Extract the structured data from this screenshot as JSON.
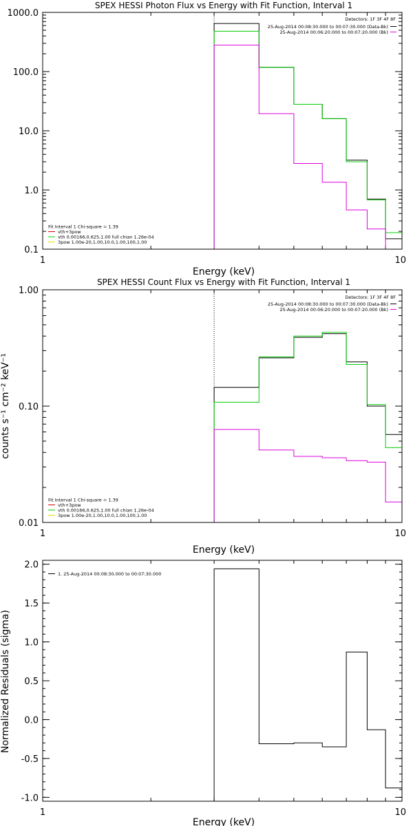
{
  "chart_data": [
    {
      "type": "line",
      "title": "SPEX HESSI Photon Flux vs Energy with Fit Function, Interval 1",
      "xlabel": "Energy (keV)",
      "ylabel": "",
      "xscale": "log",
      "yscale": "log",
      "xlim": [
        1,
        10
      ],
      "ylim": [
        0.1,
        1000
      ],
      "x_ticks": [
        "1",
        "10"
      ],
      "y_ticks": [
        "0.1",
        "1.0",
        "10.0",
        "100.0",
        "1000.0"
      ],
      "dotted_x": 3,
      "legend_right": {
        "detectors": "Detectors: 1F 3F 4F 8F",
        "entries": [
          {
            "text": "25-Aug-2014 00:08:30.000 to 00:07:30.000 (Data-Bk)",
            "color": "#000000"
          },
          {
            "text": "25-Aug-2014 00:06:20.000 to 00:07:20.000 (Bk)",
            "color": "#dd00dd"
          }
        ]
      },
      "legend_left": {
        "header": "Fit Interval 1    Chi-square = 1.39",
        "entries": [
          {
            "text": "vth+3pow",
            "color": "#dd0000"
          },
          {
            "text": "vth 0.00166,0.625,1.00  full chian 1.26e-04",
            "color": "#00cc00"
          },
          {
            "text": "3pow 1.00e-20,1.00,10.0,1.00,100,1.00",
            "color": "#dddd00"
          }
        ]
      },
      "edges": [
        3,
        4,
        5,
        6,
        7,
        8,
        9,
        10
      ],
      "series": [
        {
          "color": "#000000",
          "values": [
            650,
            118,
            28,
            16,
            3.2,
            0.7,
            0.15
          ]
        },
        {
          "color": "#00cc00",
          "values": [
            480,
            118,
            28,
            16,
            3.0,
            0.68,
            0.19
          ]
        },
        {
          "color": "#dd00dd",
          "values": [
            280,
            19.5,
            2.8,
            1.35,
            0.46,
            0.22,
            0.1
          ]
        }
      ]
    },
    {
      "type": "line",
      "title": "SPEX HESSI Count Flux vs Energy with Fit Function, Interval 1",
      "xlabel": "Energy (keV)",
      "ylabel": "counts s⁻¹ cm⁻² keV⁻¹",
      "xscale": "log",
      "yscale": "log",
      "xlim": [
        1,
        10
      ],
      "ylim": [
        0.01,
        1
      ],
      "x_ticks": [
        "1",
        "10"
      ],
      "y_ticks": [
        "0.01",
        "0.10",
        "1.00"
      ],
      "dotted_x": 3,
      "legend_right": {
        "detectors": "Detectors: 1F 3F 4F 8F",
        "entries": [
          {
            "text": "25-Aug-2014 00:08:30.000 to 00:07:30.000 (Data-Bk)",
            "color": "#000000"
          },
          {
            "text": "25-Aug-2014 00:06:20.000 to 00:07:20.000 (Bk)",
            "color": "#dd00dd"
          }
        ]
      },
      "legend_left": {
        "header": "Fit Interval 1    Chi-square = 1.39",
        "entries": [
          {
            "text": "vth+3pow",
            "color": "#dd0000"
          },
          {
            "text": "vth 0.00166,0.625,1.00  full chian 1.26e-04",
            "color": "#00cc00"
          },
          {
            "text": "3pow 1.00e-20,1.00,10.0,1.00,100,1.00",
            "color": "#dddd00"
          }
        ]
      },
      "edges": [
        3,
        4,
        5,
        6,
        7,
        8,
        9,
        10
      ],
      "series": [
        {
          "color": "#000000",
          "values": [
            0.145,
            0.26,
            0.39,
            0.42,
            0.24,
            0.1,
            0.057
          ]
        },
        {
          "color": "#00cc00",
          "values": [
            0.108,
            0.265,
            0.4,
            0.43,
            0.228,
            0.103,
            0.044
          ]
        },
        {
          "color": "#dd00dd",
          "values": [
            0.063,
            0.042,
            0.037,
            0.036,
            0.034,
            0.033,
            0.015
          ]
        }
      ]
    },
    {
      "type": "line",
      "title": "",
      "xlabel": "Energy (keV)",
      "ylabel": "Normalized Residuals (sigma)",
      "xscale": "log",
      "yscale": "linear",
      "xlim": [
        1,
        10
      ],
      "ylim": [
        -1.05,
        2.05
      ],
      "x_ticks": [
        "1",
        "10"
      ],
      "y_ticks": [
        "-1.0",
        "-0.5",
        "0.0",
        "0.5",
        "1.0",
        "1.5",
        "2.0"
      ],
      "legend_left_top": {
        "entries": [
          {
            "text": "1. 25-Aug-2014 00:08:30.000 to 00:07:30.000",
            "color": "#000000"
          }
        ]
      },
      "edges": [
        3,
        4,
        5,
        6,
        7,
        8,
        9,
        10
      ],
      "series": [
        {
          "color": "#000000",
          "values": [
            1.94,
            -0.31,
            -0.3,
            -0.35,
            0.87,
            -0.13,
            -0.88
          ]
        }
      ]
    }
  ]
}
